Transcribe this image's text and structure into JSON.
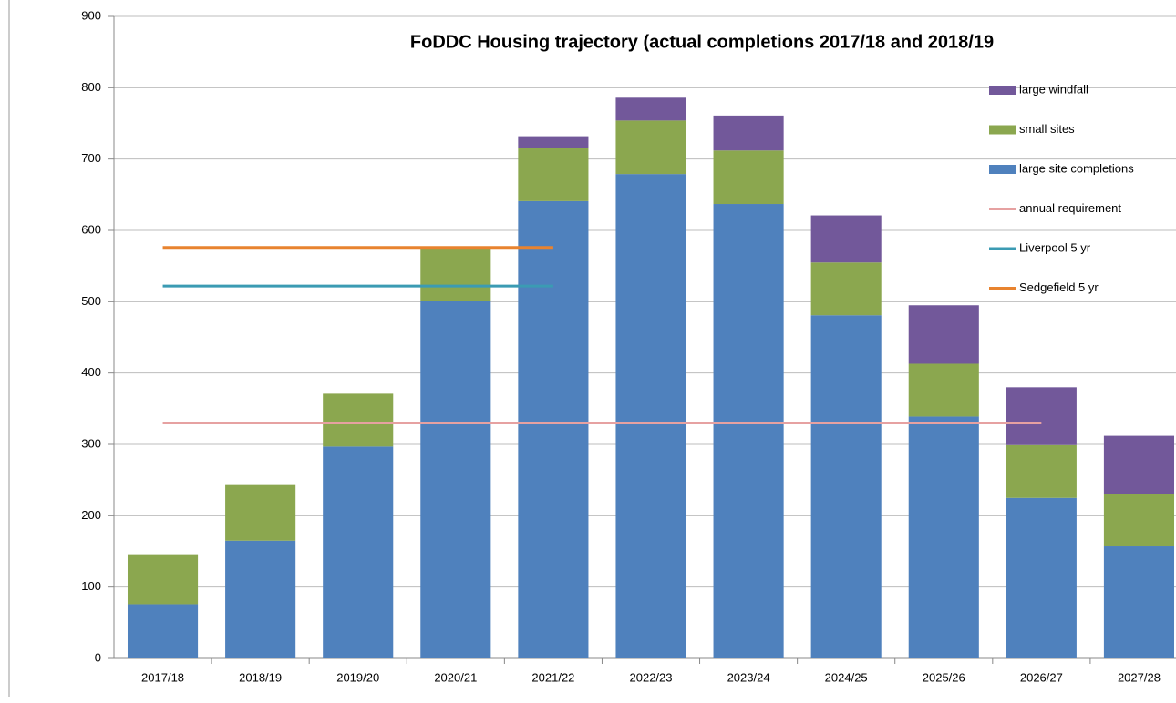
{
  "chart_data": {
    "type": "bar",
    "title": "FoDDC  Housing trajectory (actual completions 2017/18 and 2018/19",
    "categories": [
      "2017/18",
      "2018/19",
      "2019/20",
      "2020/21",
      "2021/22",
      "2022/23",
      "2023/24",
      "2024/25",
      "2025/26",
      "2026/27",
      "2027/28"
    ],
    "stacked": true,
    "series": [
      {
        "name": "large site completions",
        "color": "#4f81bd",
        "values": [
          76,
          165,
          297,
          501,
          641,
          679,
          637,
          481,
          339,
          225,
          157
        ]
      },
      {
        "name": "small sites",
        "color": "#8ba74f",
        "values": [
          70,
          78,
          74,
          74,
          75,
          75,
          75,
          74,
          74,
          74,
          74
        ]
      },
      {
        "name": "large windfall",
        "color": "#72589a",
        "values": [
          0,
          0,
          0,
          0,
          16,
          32,
          49,
          66,
          82,
          81,
          81
        ]
      },
      {
        "name": "annual requirement",
        "type": "line",
        "color": "#e6a1a1",
        "values": [
          330,
          330,
          330,
          330,
          330,
          330,
          330,
          330,
          330,
          330,
          null
        ]
      },
      {
        "name": "Liverpool 5 yr",
        "type": "line",
        "color": "#3b9bb3",
        "values": [
          522,
          522,
          522,
          522,
          522,
          null,
          null,
          null,
          null,
          null,
          null
        ]
      },
      {
        "name": "Sedgefield 5 yr",
        "type": "line",
        "color": "#e8832f",
        "values": [
          576,
          576,
          576,
          576,
          576,
          null,
          null,
          null,
          null,
          null,
          null
        ]
      }
    ],
    "ylim": [
      0,
      900
    ],
    "yticks": [
      0,
      100,
      200,
      300,
      400,
      500,
      600,
      700,
      800,
      900
    ],
    "grid": true,
    "legend": "right"
  }
}
